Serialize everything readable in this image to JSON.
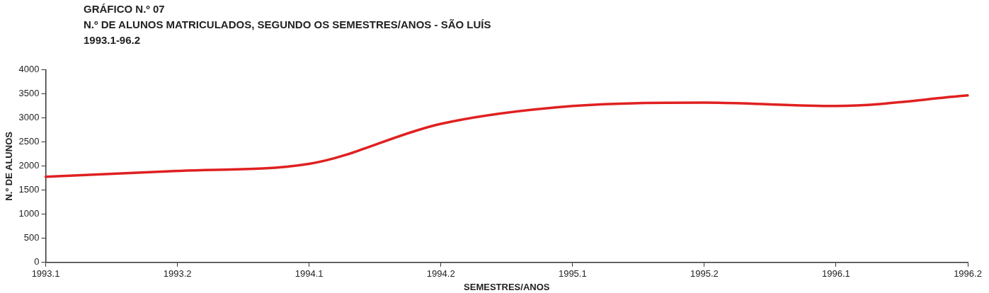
{
  "chart_data": {
    "type": "line",
    "title": "GRÁFICO N.º 07",
    "subtitle": "N.º DE ALUNOS MATRICULADOS, SEGUNDO OS SEMESTRES/ANOS - SÃO LUÍS",
    "annotations": [
      "1993.1-96.2"
    ],
    "xlabel": "SEMESTRES/ANOS",
    "ylabel": "N.º DE ALUNOS",
    "categories": [
      "1993.1",
      "1993.2",
      "1994.1",
      "1994.2",
      "1995.1",
      "1995.2",
      "1996.1",
      "1996.2"
    ],
    "series": [
      {
        "color": "#e02020",
        "values": [
          1780,
          1900,
          2050,
          2880,
          3250,
          3320,
          3250,
          3470
        ]
      }
    ],
    "ylim": [
      0,
      4000
    ],
    "yticks": [
      0,
      500,
      1000,
      1500,
      2000,
      2500,
      3000,
      3500,
      4000
    ],
    "grid": false,
    "legend": false,
    "marker": "none",
    "line_style": "solid"
  }
}
